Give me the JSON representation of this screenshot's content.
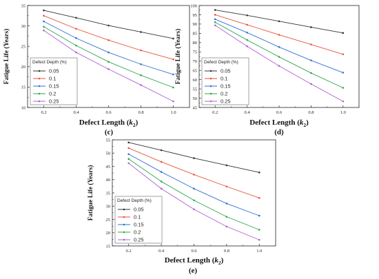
{
  "chart_data": [
    {
      "type": "line",
      "panel_label": "(c)",
      "xlabel_main": "Defect Length (",
      "xlabel_var": "k",
      "xlabel_sub": "2",
      "xlabel_end": ")",
      "ylabel": "Fatigue Life (Years)",
      "x": [
        0.2,
        0.4,
        0.6,
        0.8,
        1.0
      ],
      "xticks": [
        "0.2",
        "0.4",
        "0.6",
        "0.8",
        "1.0"
      ],
      "xlim": [
        0.1,
        1.1
      ],
      "ylim": [
        10,
        35
      ],
      "yticks": [
        "10",
        "15",
        "20",
        "25",
        "30",
        "35"
      ],
      "grid": false,
      "legend_title": "Defect Depth (%)",
      "legend_position": "bottom-left",
      "series": [
        {
          "name": "0.05",
          "color": "#333333",
          "values": [
            33.8,
            32.0,
            30.1,
            28.5,
            26.9
          ]
        },
        {
          "name": "0.1",
          "color": "#e8523a",
          "values": [
            32.5,
            29.3,
            26.5,
            24.0,
            21.8
          ]
        },
        {
          "name": "0.15",
          "color": "#2f6fd6",
          "values": [
            31.1,
            27.0,
            23.5,
            20.6,
            18.1
          ]
        },
        {
          "name": "0.2",
          "color": "#2aa84a",
          "values": [
            29.8,
            25.2,
            21.2,
            17.9,
            14.9
          ]
        },
        {
          "name": "0.25",
          "color": "#b05fd1",
          "values": [
            28.9,
            23.5,
            19.4,
            15.5,
            11.5
          ]
        }
      ]
    },
    {
      "type": "line",
      "panel_label": "(d)",
      "xlabel_main": "Defect Length (",
      "xlabel_var": "k",
      "xlabel_sub": "2",
      "xlabel_end": ")",
      "ylabel": "Fatigue Life (Years)",
      "x": [
        0.2,
        0.4,
        0.6,
        0.8,
        1.0
      ],
      "xticks": [
        "0.2",
        "0.4",
        "0.6",
        "0.8",
        "1.0"
      ],
      "xlim": [
        0.1,
        1.1
      ],
      "ylim": [
        45,
        100
      ],
      "yticks": [
        "45",
        "50",
        "55",
        "60",
        "65",
        "70",
        "75",
        "80",
        "85",
        "90",
        "95",
        "100"
      ],
      "grid": false,
      "legend_title": "Defect Depth (%)",
      "legend_position": "bottom-left",
      "series": [
        {
          "name": "0.05",
          "color": "#333333",
          "values": [
            97.6,
            94.7,
            91.5,
            88.3,
            85.2
          ]
        },
        {
          "name": "0.1",
          "color": "#e8523a",
          "values": [
            95.0,
            89.6,
            84.2,
            79.0,
            73.7
          ]
        },
        {
          "name": "0.15",
          "color": "#2f6fd6",
          "values": [
            92.6,
            85.4,
            77.6,
            70.4,
            63.8
          ]
        },
        {
          "name": "0.2",
          "color": "#2aa84a",
          "values": [
            91.0,
            81.4,
            72.3,
            63.6,
            55.6
          ]
        },
        {
          "name": "0.25",
          "color": "#b05fd1",
          "values": [
            89.3,
            78.0,
            67.4,
            57.7,
            48.3
          ]
        }
      ]
    },
    {
      "type": "line",
      "panel_label": "(e)",
      "xlabel_main": "Defect Length (",
      "xlabel_var": "k",
      "xlabel_sub": "2",
      "xlabel_end": ")",
      "ylabel": "Fatigue Life (Years)",
      "x": [
        0.2,
        0.4,
        0.6,
        0.8,
        1.0
      ],
      "xticks": [
        "0.2",
        "0.4",
        "0.6",
        "0.8",
        "1.0"
      ],
      "xlim": [
        0.1,
        1.1
      ],
      "ylim": [
        15,
        55
      ],
      "yticks": [
        "15",
        "20",
        "25",
        "30",
        "35",
        "40",
        "45",
        "50",
        "55"
      ],
      "grid": false,
      "legend_title": "Defect Depth (%)",
      "legend_position": "bottom-left",
      "series": [
        {
          "name": "0.05",
          "color": "#333333",
          "values": [
            54.0,
            51.1,
            48.1,
            45.4,
            42.7
          ]
        },
        {
          "name": "0.1",
          "color": "#e8523a",
          "values": [
            51.9,
            46.7,
            41.9,
            37.4,
            33.1
          ]
        },
        {
          "name": "0.15",
          "color": "#2f6fd6",
          "values": [
            49.6,
            42.9,
            36.6,
            31.0,
            26.4
          ]
        },
        {
          "name": "0.2",
          "color": "#2aa84a",
          "values": [
            47.8,
            39.3,
            32.2,
            26.0,
            21.1
          ]
        },
        {
          "name": "0.25",
          "color": "#b05fd1",
          "values": [
            46.2,
            36.6,
            28.8,
            22.3,
            17.3
          ]
        }
      ]
    }
  ]
}
